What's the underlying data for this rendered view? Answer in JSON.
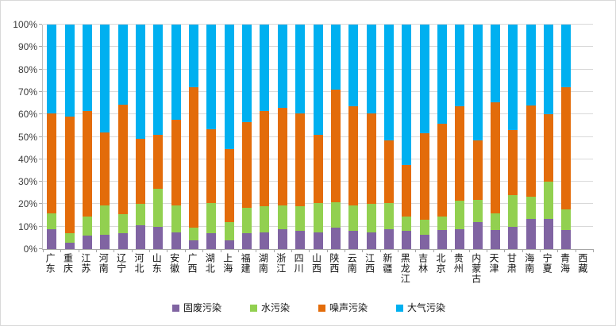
{
  "chart_data": {
    "type": "bar",
    "variant": "stacked-100-percent-column",
    "title": "",
    "xlabel": "",
    "ylabel": "",
    "grid": true,
    "legend_position": "bottom",
    "categories": [
      "广东",
      "重庆",
      "江苏",
      "河南",
      "辽宁",
      "河北",
      "山东",
      "安徽",
      "广西",
      "湖北",
      "上海",
      "福建",
      "湖南",
      "浙江",
      "四川",
      "山西",
      "陕西",
      "云南",
      "江西",
      "新疆",
      "黑龙江",
      "吉林",
      "北京",
      "贵州",
      "内蒙古",
      "天津",
      "甘肃",
      "海南",
      "宁夏",
      "青海",
      "西藏"
    ],
    "series": [
      {
        "name": "固废污染",
        "color": "#8064A2",
        "values": [
          9,
          2.7,
          6,
          6.5,
          7,
          10.5,
          10,
          7.5,
          4,
          7,
          4,
          7,
          7.5,
          9,
          8,
          7.5,
          9.5,
          8,
          7.5,
          9,
          8,
          6.5,
          8.5,
          9,
          12,
          8.5,
          10,
          13.5,
          13.5,
          8.5,
          0
        ]
      },
      {
        "name": "水污染",
        "color": "#92D050",
        "values": [
          7,
          4.3,
          8.5,
          13,
          8.5,
          9.5,
          17,
          12,
          5.5,
          13.5,
          8,
          11.5,
          11.5,
          10.5,
          11,
          13,
          11.5,
          11.5,
          12.5,
          11.5,
          6.5,
          6.5,
          6,
          12.5,
          10,
          7.5,
          14,
          10,
          16.5,
          9,
          0
        ]
      },
      {
        "name": "噪声污染",
        "color": "#E36C0A",
        "values": [
          44.5,
          52,
          47,
          32.5,
          49,
          29,
          24,
          38,
          62.5,
          33,
          32.5,
          38,
          42.5,
          43.5,
          41.5,
          30.5,
          50,
          44,
          40.5,
          28,
          23,
          38.5,
          41.5,
          42,
          26.5,
          49.5,
          29,
          40.5,
          30,
          54.5,
          0
        ]
      },
      {
        "name": "大气污染",
        "color": "#00B0F0",
        "values": [
          39.5,
          41,
          38.5,
          48,
          35.5,
          51,
          49,
          42.5,
          28,
          46.5,
          55.5,
          43.5,
          38.5,
          37,
          39.5,
          49,
          29,
          36.5,
          39.5,
          51.5,
          62.5,
          48.5,
          44,
          36.5,
          51.5,
          34.5,
          47,
          36,
          40,
          28,
          0
        ]
      }
    ],
    "y_axis": {
      "min": 0,
      "max": 100,
      "step": 10,
      "tick_labels": [
        "0%",
        "10%",
        "20%",
        "30%",
        "40%",
        "50%",
        "60%",
        "70%",
        "80%",
        "90%",
        "100%"
      ]
    },
    "legend": [
      "固废污染",
      "水污染",
      "噪声污染",
      "大气污染"
    ]
  },
  "style": {
    "gridline_color": "#D9D9D9",
    "axis_color": "#A6A6A6",
    "tick_label_color": "#3D3D3D",
    "category_label_color": "#111111",
    "background": "#FFFFFF"
  }
}
